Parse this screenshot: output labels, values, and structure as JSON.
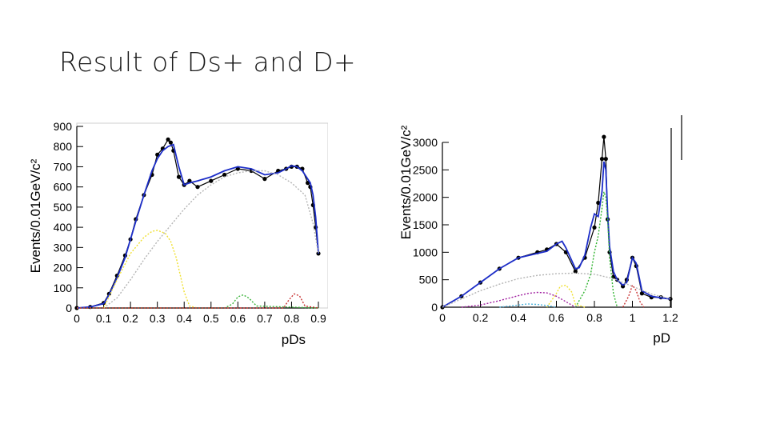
{
  "slide": {
    "title": "Result of Ds+ and D+"
  },
  "chart_data": [
    {
      "type": "line",
      "xlabel": "pDs",
      "ylabel": "Events/0.01GeV/c²",
      "xlim": [
        0,
        0.9
      ],
      "ylim": [
        0,
        900
      ],
      "xticks": [
        "0",
        "0.1",
        "0.2",
        "0.3",
        "0.4",
        "0.5",
        "0.6",
        "0.7",
        "0.8",
        "0.9"
      ],
      "yticks": [
        "0",
        "100",
        "200",
        "300",
        "400",
        "500",
        "600",
        "700",
        "800",
        "900"
      ],
      "grid": false,
      "series": [
        {
          "role": "data",
          "color": "#000000",
          "x": [
            0,
            0.05,
            0.1,
            0.12,
            0.15,
            0.18,
            0.2,
            0.22,
            0.25,
            0.28,
            0.3,
            0.32,
            0.34,
            0.35,
            0.36,
            0.38,
            0.4,
            0.42,
            0.45,
            0.5,
            0.55,
            0.6,
            0.65,
            0.7,
            0.75,
            0.78,
            0.8,
            0.82,
            0.84,
            0.86,
            0.87,
            0.88,
            0.89,
            0.9
          ],
          "y": [
            0,
            5,
            25,
            70,
            160,
            260,
            340,
            440,
            560,
            660,
            760,
            790,
            835,
            820,
            780,
            650,
            610,
            630,
            600,
            630,
            660,
            690,
            680,
            640,
            680,
            690,
            700,
            700,
            690,
            620,
            600,
            510,
            400,
            270
          ]
        },
        {
          "role": "total fit",
          "color": "#1c2dc8",
          "x": [
            0,
            0.05,
            0.1,
            0.12,
            0.15,
            0.18,
            0.2,
            0.22,
            0.25,
            0.28,
            0.3,
            0.32,
            0.34,
            0.36,
            0.38,
            0.4,
            0.42,
            0.45,
            0.5,
            0.55,
            0.6,
            0.65,
            0.7,
            0.75,
            0.78,
            0.8,
            0.82,
            0.84,
            0.86,
            0.87,
            0.88,
            0.89,
            0.9
          ],
          "y": [
            0,
            5,
            22,
            65,
            150,
            250,
            340,
            430,
            560,
            680,
            740,
            780,
            800,
            810,
            700,
            610,
            620,
            630,
            650,
            680,
            700,
            690,
            660,
            670,
            690,
            705,
            700,
            680,
            640,
            620,
            560,
            450,
            270
          ]
        },
        {
          "role": "combinatorial background",
          "color": "#b4b4b4",
          "x": [
            0.1,
            0.15,
            0.2,
            0.25,
            0.3,
            0.35,
            0.4,
            0.45,
            0.5,
            0.55,
            0.6,
            0.65,
            0.7,
            0.75,
            0.8,
            0.85,
            0.88,
            0.9
          ],
          "y": [
            0,
            50,
            140,
            240,
            330,
            410,
            490,
            560,
            610,
            650,
            670,
            680,
            680,
            660,
            620,
            560,
            420,
            270
          ]
        },
        {
          "role": "peak component",
          "color": "#f0e030",
          "x": [
            0.1,
            0.15,
            0.2,
            0.25,
            0.28,
            0.3,
            0.33,
            0.35,
            0.37,
            0.4,
            0.42,
            0.45
          ],
          "y": [
            0,
            140,
            270,
            350,
            380,
            385,
            370,
            330,
            250,
            80,
            10,
            0
          ]
        },
        {
          "role": "peak component",
          "color": "#3cb43c",
          "x": [
            0,
            0.55,
            0.58,
            0.6,
            0.62,
            0.64,
            0.67,
            0.9
          ],
          "y": [
            0,
            0,
            20,
            55,
            65,
            50,
            10,
            0
          ]
        },
        {
          "role": "peak component",
          "color": "#c83232",
          "x": [
            0,
            0.77,
            0.79,
            0.81,
            0.83,
            0.85,
            0.9
          ],
          "y": [
            0,
            0,
            40,
            70,
            60,
            10,
            0
          ]
        }
      ]
    },
    {
      "type": "line",
      "xlabel": "pD",
      "ylabel": "Events/0.01GeV/c²",
      "xlim": [
        0,
        1.2
      ],
      "ylim": [
        0,
        3000
      ],
      "xticks": [
        "0",
        "0.2",
        "0.4",
        "0.6",
        "0.8",
        "1",
        "1.2"
      ],
      "yticks": [
        "0",
        "500",
        "1000",
        "1500",
        "2000",
        "2500",
        "3000"
      ],
      "grid": false,
      "series": [
        {
          "role": "data",
          "color": "#000000",
          "x": [
            0,
            0.1,
            0.2,
            0.3,
            0.4,
            0.5,
            0.55,
            0.6,
            0.65,
            0.7,
            0.75,
            0.8,
            0.82,
            0.84,
            0.85,
            0.86,
            0.87,
            0.88,
            0.9,
            0.92,
            0.95,
            0.97,
            1.0,
            1.02,
            1.05,
            1.1,
            1.15,
            1.2
          ],
          "y": [
            0,
            200,
            450,
            700,
            900,
            1000,
            1050,
            1150,
            1000,
            650,
            900,
            1450,
            1900,
            2700,
            3100,
            2700,
            1600,
            1000,
            550,
            500,
            380,
            500,
            900,
            750,
            250,
            180,
            180,
            150
          ]
        },
        {
          "role": "total fit",
          "color": "#1c2dc8",
          "x": [
            0,
            0.1,
            0.2,
            0.3,
            0.4,
            0.5,
            0.55,
            0.6,
            0.63,
            0.65,
            0.7,
            0.72,
            0.75,
            0.78,
            0.8,
            0.82,
            0.84,
            0.85,
            0.86,
            0.87,
            0.88,
            0.9,
            0.92,
            0.95,
            0.97,
            1.0,
            1.02,
            1.05,
            1.1,
            1.15,
            1.2
          ],
          "y": [
            0,
            200,
            450,
            700,
            900,
            980,
            1020,
            1150,
            1200,
            1080,
            700,
            720,
            950,
            1450,
            1700,
            1650,
            2100,
            2650,
            2500,
            1700,
            1100,
            650,
            500,
            400,
            450,
            900,
            800,
            300,
            200,
            170,
            150
          ]
        },
        {
          "role": "background",
          "color": "#b4b4b4",
          "x": [
            0,
            0.1,
            0.2,
            0.3,
            0.4,
            0.5,
            0.6,
            0.7,
            0.8,
            0.9,
            1.0,
            1.1,
            1.2
          ],
          "y": [
            0,
            150,
            300,
            420,
            520,
            580,
            610,
            620,
            600,
            520,
            380,
            240,
            150
          ]
        },
        {
          "role": "peak component",
          "color": "#f0e030",
          "x": [
            0.55,
            0.6,
            0.62,
            0.65,
            0.68,
            0.7,
            0.75
          ],
          "y": [
            0,
            250,
            380,
            400,
            280,
            50,
            0
          ]
        },
        {
          "role": "peak component",
          "color": "#32b432",
          "x": [
            0.7,
            0.75,
            0.78,
            0.8,
            0.82,
            0.84,
            0.85,
            0.86,
            0.87,
            0.88,
            0.9,
            0.92
          ],
          "y": [
            0,
            300,
            600,
            1000,
            1300,
            1800,
            2100,
            2000,
            1600,
            900,
            250,
            0
          ]
        },
        {
          "role": "peak component",
          "color": "#a01ea0",
          "x": [
            0.1,
            0.2,
            0.3,
            0.4,
            0.45,
            0.5,
            0.55,
            0.6,
            0.65,
            0.7
          ],
          "y": [
            0,
            40,
            120,
            210,
            250,
            270,
            260,
            200,
            100,
            0
          ]
        },
        {
          "role": "peak component",
          "color": "#50b4dc",
          "x": [
            0.3,
            0.4,
            0.45,
            0.5,
            0.55,
            0.6
          ],
          "y": [
            0,
            40,
            60,
            50,
            30,
            0
          ]
        },
        {
          "role": "peak component",
          "color": "#c83232",
          "x": [
            0.95,
            0.98,
            1.0,
            1.02,
            1.04,
            1.06
          ],
          "y": [
            0,
            200,
            400,
            300,
            100,
            0
          ]
        }
      ]
    }
  ]
}
